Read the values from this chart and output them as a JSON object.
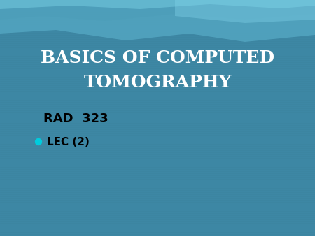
{
  "title_line1": "BASICS OF COMPUTED",
  "title_line2": "TOMOGRAPHY",
  "subtitle": "RAD  323",
  "bullet_text": "LEC (2)",
  "bg_color_main": "#3d87a4",
  "title_color": "#ffffff",
  "subtitle_color": "#000000",
  "bullet_color": "#000000",
  "bullet_dot_color": "#00ccdd",
  "title_fontsize": 18,
  "subtitle_fontsize": 13,
  "bullet_fontsize": 11,
  "wave_color_1": "#5aafca",
  "wave_color_2": "#72c4dc",
  "wave_color_3": "#4a9db8"
}
